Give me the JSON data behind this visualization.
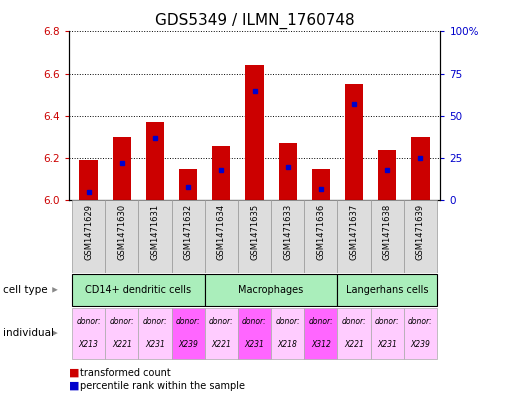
{
  "title": "GDS5349 / ILMN_1760748",
  "samples": [
    "GSM1471629",
    "GSM1471630",
    "GSM1471631",
    "GSM1471632",
    "GSM1471634",
    "GSM1471635",
    "GSM1471633",
    "GSM1471636",
    "GSM1471637",
    "GSM1471638",
    "GSM1471639"
  ],
  "transformed_counts": [
    6.19,
    6.3,
    6.37,
    6.15,
    6.26,
    6.64,
    6.27,
    6.15,
    6.55,
    6.24,
    6.3
  ],
  "percentile_ranks": [
    5,
    22,
    37,
    8,
    18,
    65,
    20,
    7,
    57,
    18,
    25
  ],
  "bar_base": 6.0,
  "ylim": [
    6.0,
    6.8
  ],
  "yticks_left": [
    6.0,
    6.2,
    6.4,
    6.6,
    6.8
  ],
  "yticks_right": [
    0,
    25,
    50,
    75,
    100
  ],
  "bar_color": "#cc0000",
  "percentile_color": "#0000cc",
  "cell_type_groups": [
    {
      "label": "CD14+ dendritic cells",
      "start": 0,
      "end": 3,
      "color": "#aaeebb"
    },
    {
      "label": "Macrophages",
      "start": 4,
      "end": 7,
      "color": "#aaeebb"
    },
    {
      "label": "Langerhans cells",
      "start": 8,
      "end": 10,
      "color": "#aaeebb"
    }
  ],
  "individual_donors": [
    "X213",
    "X221",
    "X231",
    "X239",
    "X221",
    "X231",
    "X218",
    "X312",
    "X221",
    "X231",
    "X239"
  ],
  "individual_colors": [
    "#ffccff",
    "#ffccff",
    "#ffccff",
    "#ff66ff",
    "#ffccff",
    "#ff66ff",
    "#ffccff",
    "#ff66ff",
    "#ffccff",
    "#ffccff",
    "#ffccff"
  ],
  "row_label_cell_type": "cell type",
  "row_label_individual": "individual",
  "legend_red": "transformed count",
  "legend_blue": "percentile rank within the sample",
  "label_color_red": "#cc0000",
  "label_color_blue": "#0000cc",
  "bar_width": 0.55,
  "title_fontsize": 11,
  "tick_fontsize": 7.5,
  "sample_label_fontsize": 6,
  "xticklabel_bg": "#cccccc",
  "xticklabel_bg_alt": "#dddddd"
}
